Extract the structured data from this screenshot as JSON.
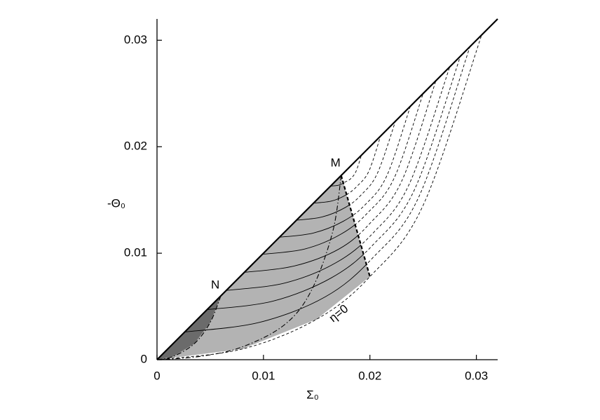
{
  "chart_data": {
    "type": "line",
    "xlabel": "Σ₀",
    "ylabel": "-Θ₀",
    "xlim": [
      0,
      0.032
    ],
    "ylim": [
      0,
      0.032
    ],
    "xticks": [
      0,
      0.01,
      0.02,
      0.03
    ],
    "yticks": [
      0,
      0.01,
      0.02,
      0.03
    ],
    "regions": [
      {
        "color": "#b3b3b3",
        "x": [
          0,
          0.0173,
          0.02,
          0.015,
          0.008,
          0
        ],
        "y": [
          0,
          0.0173,
          0.0078,
          0.0038,
          0.001,
          0
        ]
      },
      {
        "color": "#6b6b6b",
        "x": [
          0,
          0.006,
          0.005,
          0.0035,
          0.0015,
          0
        ],
        "y": [
          0,
          0.006,
          0.0035,
          0.0015,
          0.0003,
          0
        ]
      }
    ],
    "series": [
      {
        "style": "family",
        "color": "#000000",
        "x": [
          0,
          0.008,
          0.015,
          0.02,
          0.025,
          0.0305
        ],
        "y": [
          0,
          0.001,
          0.0038,
          0.0078,
          0.0145,
          0.0305
        ]
      },
      {
        "style": "family",
        "color": "#000000",
        "x": [
          0.0026,
          0.0096,
          0.0158,
          0.0202,
          0.0246,
          0.0294
        ],
        "y": [
          0.0026,
          0.0035,
          0.0059,
          0.0095,
          0.0153,
          0.0294
        ]
      },
      {
        "style": "family",
        "color": "#000000",
        "x": [
          0.0047,
          0.0109,
          0.0164,
          0.0203,
          0.0242,
          0.0285
        ],
        "y": [
          0.0047,
          0.0055,
          0.0077,
          0.0108,
          0.016,
          0.0285
        ]
      },
      {
        "style": "family",
        "color": "#000000",
        "x": [
          0.0065,
          0.012,
          0.0168,
          0.0203,
          0.0237,
          0.0275
        ],
        "y": [
          0.0065,
          0.0072,
          0.0091,
          0.0119,
          0.0165,
          0.0275
        ]
      },
      {
        "style": "family",
        "color": "#000000",
        "x": [
          0.0082,
          0.0129,
          0.0171,
          0.02,
          0.023,
          0.0262
        ],
        "y": [
          0.0082,
          0.0088,
          0.0104,
          0.0128,
          0.0168,
          0.0262
        ]
      },
      {
        "style": "family",
        "color": "#000000",
        "x": [
          0.0099,
          0.0139,
          0.0173,
          0.0198,
          0.0223,
          0.025
        ],
        "y": [
          0.0099,
          0.0104,
          0.0118,
          0.0138,
          0.0171,
          0.025
        ]
      },
      {
        "style": "family",
        "color": "#000000",
        "x": [
          0.0115,
          0.0147,
          0.0175,
          0.0196,
          0.0216,
          0.0238
        ],
        "y": [
          0.0115,
          0.0119,
          0.013,
          0.0146,
          0.0173,
          0.0238
        ]
      },
      {
        "style": "family",
        "color": "#000000",
        "x": [
          0.0131,
          0.0155,
          0.0177,
          0.0192,
          0.0207,
          0.0224
        ],
        "y": [
          0.0131,
          0.0134,
          0.0143,
          0.0155,
          0.0175,
          0.0224
        ]
      },
      {
        "style": "family",
        "color": "#000000",
        "x": [
          0.0147,
          0.0164,
          0.0178,
          0.0188,
          0.0199,
          0.021
        ],
        "y": [
          0.0147,
          0.0149,
          0.0155,
          0.0163,
          0.0177,
          0.021
        ]
      },
      {
        "style": "family",
        "color": "#000000",
        "x": [
          0.0163,
          0.0171,
          0.0177,
          0.0182,
          0.0187,
          0.0192
        ],
        "y": [
          0.0163,
          0.0164,
          0.0167,
          0.017,
          0.0177,
          0.0192
        ]
      },
      {
        "style": "dash-dot",
        "color": "#000000",
        "x": [
          0.0173,
          0.0165,
          0.0145,
          0.012,
          0.008,
          0.004,
          0
        ],
        "y": [
          0.0173,
          0.012,
          0.0065,
          0.0033,
          0.0012,
          0.0003,
          0
        ]
      },
      {
        "style": "dash-dot",
        "color": "#000000",
        "x": [
          0.006,
          0.005,
          0.0035,
          0.0015,
          0
        ],
        "y": [
          0.006,
          0.0035,
          0.0015,
          0.0003,
          0
        ]
      },
      {
        "style": "dashed-bold",
        "color": "#000000",
        "x": [
          0.0173,
          0.02
        ],
        "y": [
          0.0173,
          0.0078
        ]
      },
      {
        "style": "solid-bold",
        "color": "#000000",
        "x": [
          0,
          0.032
        ],
        "y": [
          0,
          0.032
        ]
      }
    ],
    "annotations": [
      {
        "text": "M",
        "x": 0.0173,
        "y": 0.0173
      },
      {
        "text": "N",
        "x": 0.006,
        "y": 0.006
      },
      {
        "text": "η=0",
        "x": 0.0171,
        "y": 0.0043
      }
    ]
  }
}
